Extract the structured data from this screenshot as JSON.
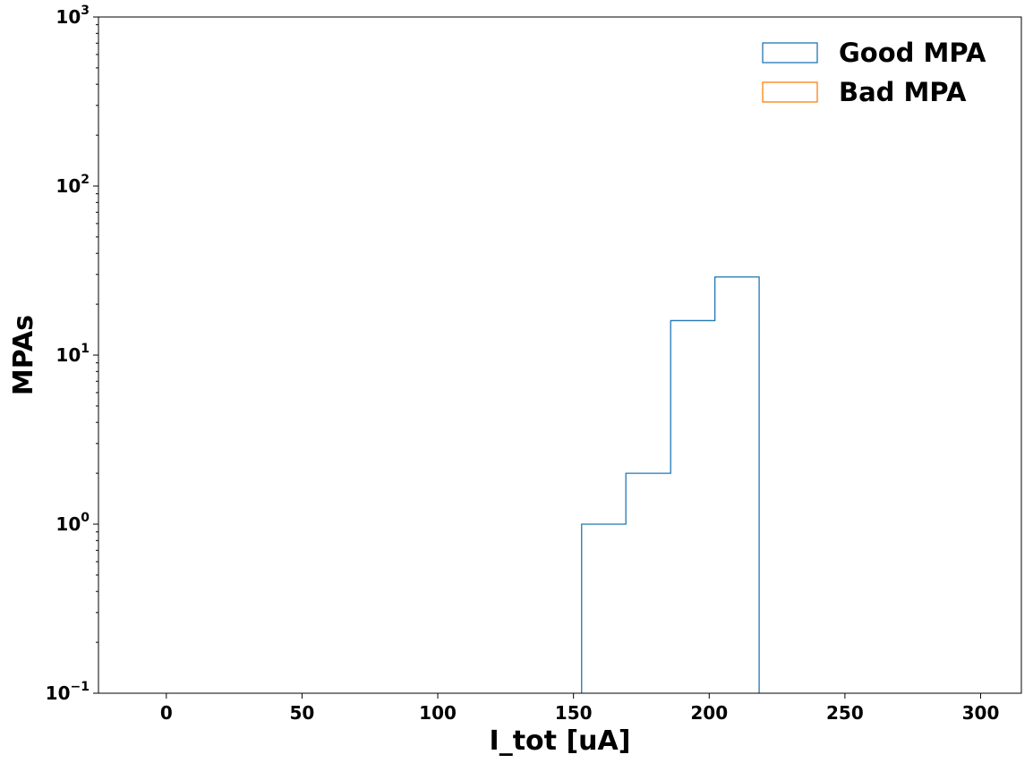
{
  "chart_data": {
    "type": "histogram",
    "xlabel": "I_tot [uA]",
    "ylabel": "MPAs",
    "xlim": [
      -25,
      315
    ],
    "ylim": [
      0.1,
      1000
    ],
    "yscale": "log",
    "x_ticks": [
      0,
      50,
      100,
      150,
      200,
      250,
      300
    ],
    "x_tick_labels": [
      "0",
      "50",
      "100",
      "150",
      "200",
      "250",
      "300"
    ],
    "y_ticks": [
      {
        "value": 0.1,
        "base": "10",
        "exp": "−1"
      },
      {
        "value": 1,
        "base": "10",
        "exp": "0"
      },
      {
        "value": 10,
        "base": "10",
        "exp": "1"
      },
      {
        "value": 100,
        "base": "10",
        "exp": "2"
      },
      {
        "value": 1000,
        "base": "10",
        "exp": "3"
      }
    ],
    "grid": false,
    "legend_position": "top-right",
    "series": [
      {
        "name": "Good MPA",
        "color": "#1f77b4",
        "bins": [
          {
            "x0": 153,
            "x1": 169.3,
            "count": 1
          },
          {
            "x0": 169.3,
            "x1": 185.8,
            "count": 2
          },
          {
            "x0": 185.8,
            "x1": 202.1,
            "count": 16
          },
          {
            "x0": 202.1,
            "x1": 218.4,
            "count": 29
          }
        ]
      },
      {
        "name": "Bad MPA",
        "color": "#ff7f0e",
        "bins": []
      }
    ]
  }
}
